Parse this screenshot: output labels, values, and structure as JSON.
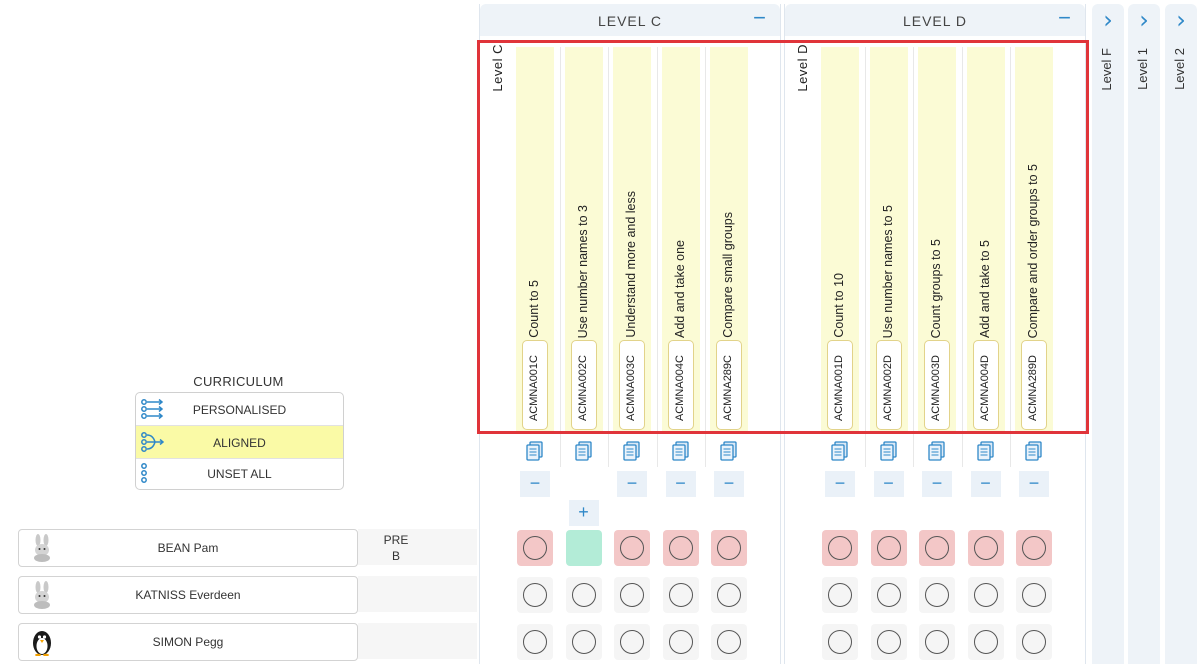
{
  "levels": [
    {
      "header": "LEVEL C",
      "vertical_title": "Level C",
      "collapse": "−",
      "outcomes": [
        {
          "desc": "Count to 5",
          "code": "ACMNA001C"
        },
        {
          "desc": "Use number names to 3",
          "code": "ACMNA002C"
        },
        {
          "desc": "Understand more and less",
          "code": "ACMNA003C"
        },
        {
          "desc": "Add and take one",
          "code": "ACMNA004C"
        },
        {
          "desc": "Compare small groups",
          "code": "ACMNA289C"
        }
      ]
    },
    {
      "header": "LEVEL D",
      "vertical_title": "Level D",
      "collapse": "−",
      "outcomes": [
        {
          "desc": "Count to 10",
          "code": "ACMNA001D"
        },
        {
          "desc": "Use number names to 5",
          "code": "ACMNA002D"
        },
        {
          "desc": "Count groups to 5",
          "code": "ACMNA003D"
        },
        {
          "desc": "Add and take to 5",
          "code": "ACMNA004D"
        },
        {
          "desc": "Compare and order groups to 5",
          "code": "ACMNA289D"
        }
      ]
    }
  ],
  "collapsed_levels": [
    {
      "label": "Level F",
      "chevron": "›"
    },
    {
      "label": "Level 1",
      "chevron": "›"
    },
    {
      "label": "Level 2",
      "chevron": "›"
    }
  ],
  "buttons": {
    "minus": "−",
    "plus": "+"
  },
  "curriculum": {
    "title": "CURRICULUM",
    "options": [
      {
        "label": "PERSONALISED",
        "icon": "personalised-icon",
        "selected": false
      },
      {
        "label": "ALIGNED",
        "icon": "aligned-icon",
        "selected": true
      },
      {
        "label": "UNSET ALL",
        "icon": "unset-icon",
        "selected": false
      }
    ]
  },
  "students": [
    {
      "name": "BEAN Pam",
      "avatar": "rabbit-icon",
      "grade_line1": "PRE",
      "grade_line2": "B",
      "levelC": [
        "pink",
        "green",
        "pink",
        "pink",
        "pink"
      ],
      "levelD": [
        "pink",
        "pink",
        "pink",
        "pink",
        "pink"
      ]
    },
    {
      "name": "KATNISS Everdeen",
      "avatar": "rabbit-icon",
      "grade_line1": "",
      "grade_line2": "",
      "levelC": [
        "grey",
        "grey",
        "grey",
        "grey",
        "grey"
      ],
      "levelD": [
        "grey",
        "grey",
        "grey",
        "grey",
        "grey"
      ]
    },
    {
      "name": "SIMON Pegg",
      "avatar": "penguin-icon",
      "grade_line1": "",
      "grade_line2": "",
      "levelC": [
        "grey",
        "grey",
        "grey",
        "grey",
        "grey"
      ],
      "levelD": [
        "grey",
        "grey",
        "grey",
        "grey",
        "grey"
      ]
    }
  ],
  "colors": {
    "accent": "#2f88c8",
    "highlight": "#e0343a",
    "aligned": "#fafaa6",
    "stripe": "#fbfbd5",
    "achieved": "#b3ecd7",
    "not_achieved": "#f3c7c7"
  }
}
